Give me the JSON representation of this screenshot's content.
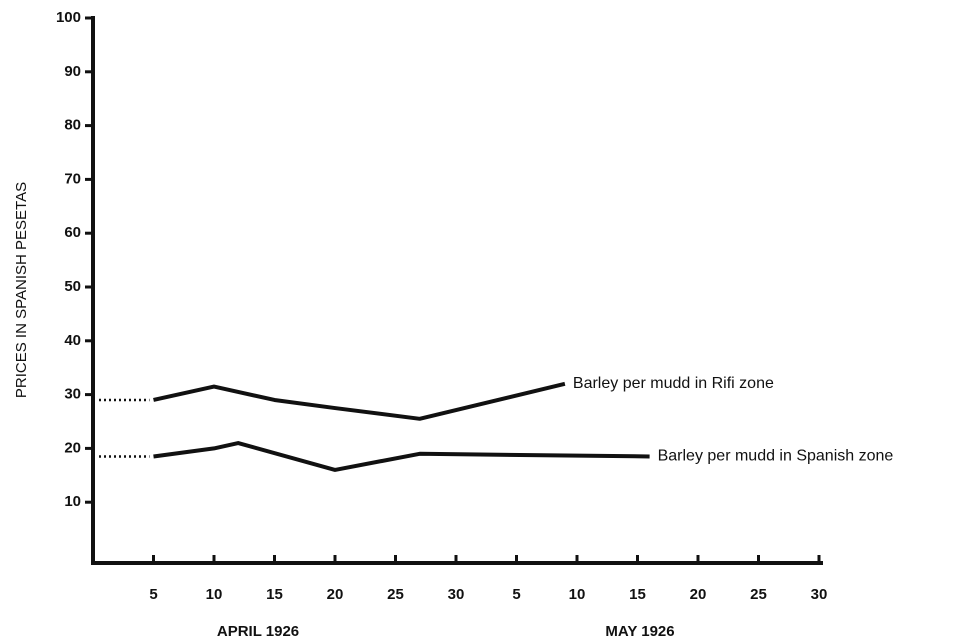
{
  "chart_data": {
    "type": "line",
    "ylabel": "PRICES IN SPANISH PESETAS",
    "xgroup_labels": [
      "APRIL 1926",
      "MAY 1926"
    ],
    "series": [
      {
        "name": "Barley per mudd in Rifi zone",
        "color": "#111111",
        "x": [
          5,
          10,
          15,
          20,
          27,
          39
        ],
        "values": [
          29,
          31.5,
          29,
          27.5,
          25.5,
          32
        ]
      },
      {
        "name": "Barley per mudd in Spanish zone",
        "color": "#111111",
        "x": [
          5,
          10,
          12,
          20,
          27,
          46
        ],
        "values": [
          18.5,
          20,
          21,
          16,
          19,
          18.5
        ]
      }
    ],
    "xlim": [
      0,
      60
    ],
    "xticks": [
      5,
      10,
      15,
      20,
      25,
      30,
      {
        "value": 35,
        "label": "5"
      },
      {
        "value": 40,
        "label": "10"
      },
      {
        "value": 45,
        "label": "15"
      },
      {
        "value": 50,
        "label": "20"
      },
      {
        "value": 55,
        "label": "25"
      },
      {
        "value": 60,
        "label": "30"
      }
    ],
    "ylim": [
      0,
      100
    ],
    "yticks": [
      10,
      20,
      30,
      40,
      50,
      60,
      70,
      80,
      90,
      100
    ],
    "grid": false
  }
}
